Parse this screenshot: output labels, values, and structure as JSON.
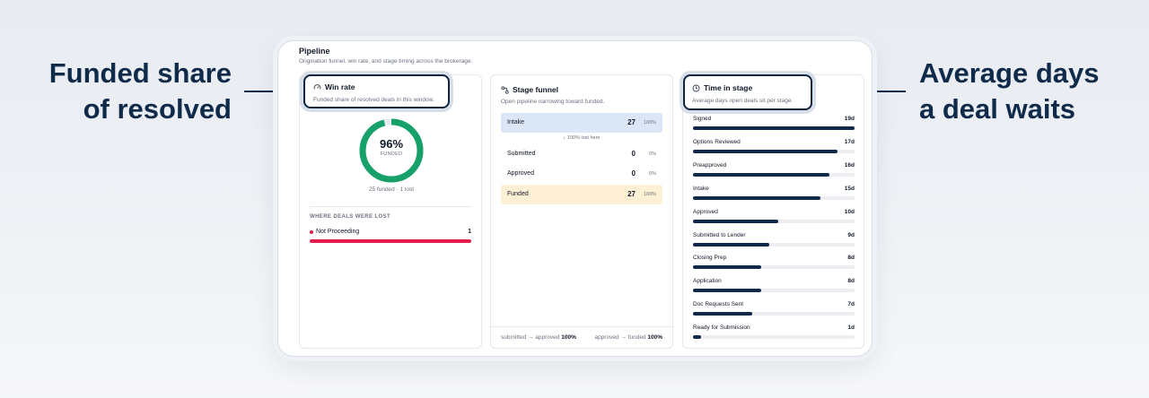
{
  "callouts": {
    "left": [
      "Funded share",
      "of resolved"
    ],
    "right": [
      "Average days",
      "a deal waits"
    ]
  },
  "panel": {
    "title": "Pipeline",
    "subtitle": "Origination funnel, win rate, and stage timing across the brokerage."
  },
  "win_rate": {
    "title": "Win rate",
    "description": "Funded share of resolved deals in this window.",
    "percent_label": "96%",
    "percent_value": 0.96,
    "ring_label": "FUNDED",
    "summary": "25 funded · 1 lost",
    "lost_heading": "WHERE DEALS WERE LOST",
    "lost": [
      {
        "name": "Not Proceeding",
        "count": "1",
        "share": 1.0
      }
    ],
    "colors": {
      "ring": "#16a06a",
      "lost": "#e11d48"
    }
  },
  "funnel": {
    "title": "Stage funnel",
    "description": "Open pipeline narrowing toward funded.",
    "rows": [
      {
        "name": "Intake",
        "count": "27",
        "pct": "100%"
      },
      {
        "name": "Submitted",
        "count": "0",
        "pct": "0%"
      },
      {
        "name": "Approved",
        "count": "0",
        "pct": "0%"
      },
      {
        "name": "Funded",
        "count": "27",
        "pct": "100%"
      }
    ],
    "lost_note": "↓ 100% lost here",
    "footer_left_label": "submitted → approved",
    "footer_left_value": "100%",
    "footer_right_label": "approved → funded",
    "footer_right_value": "100%"
  },
  "time_in_stage": {
    "title": "Time in stage",
    "description": "Average days open deals sit per stage.",
    "rows": [
      {
        "name": "Signed",
        "value": "19d",
        "days": 19
      },
      {
        "name": "Options Reviewed",
        "value": "17d",
        "days": 17
      },
      {
        "name": "Preapproved",
        "value": "16d",
        "days": 16
      },
      {
        "name": "Intake",
        "value": "15d",
        "days": 15
      },
      {
        "name": "Approved",
        "value": "10d",
        "days": 10
      },
      {
        "name": "Submitted to Lender",
        "value": "9d",
        "days": 9
      },
      {
        "name": "Closing Prep",
        "value": "8d",
        "days": 8
      },
      {
        "name": "Application",
        "value": "8d",
        "days": 8
      },
      {
        "name": "Doc Requests Sent",
        "value": "7d",
        "days": 7
      },
      {
        "name": "Ready for Submission",
        "value": "1d",
        "days": 1
      }
    ],
    "max_days": 19,
    "bar_color": "#10294a"
  },
  "icons": {
    "win_rate": "gauge-icon",
    "funnel": "flow-icon",
    "time": "clock-icon"
  }
}
